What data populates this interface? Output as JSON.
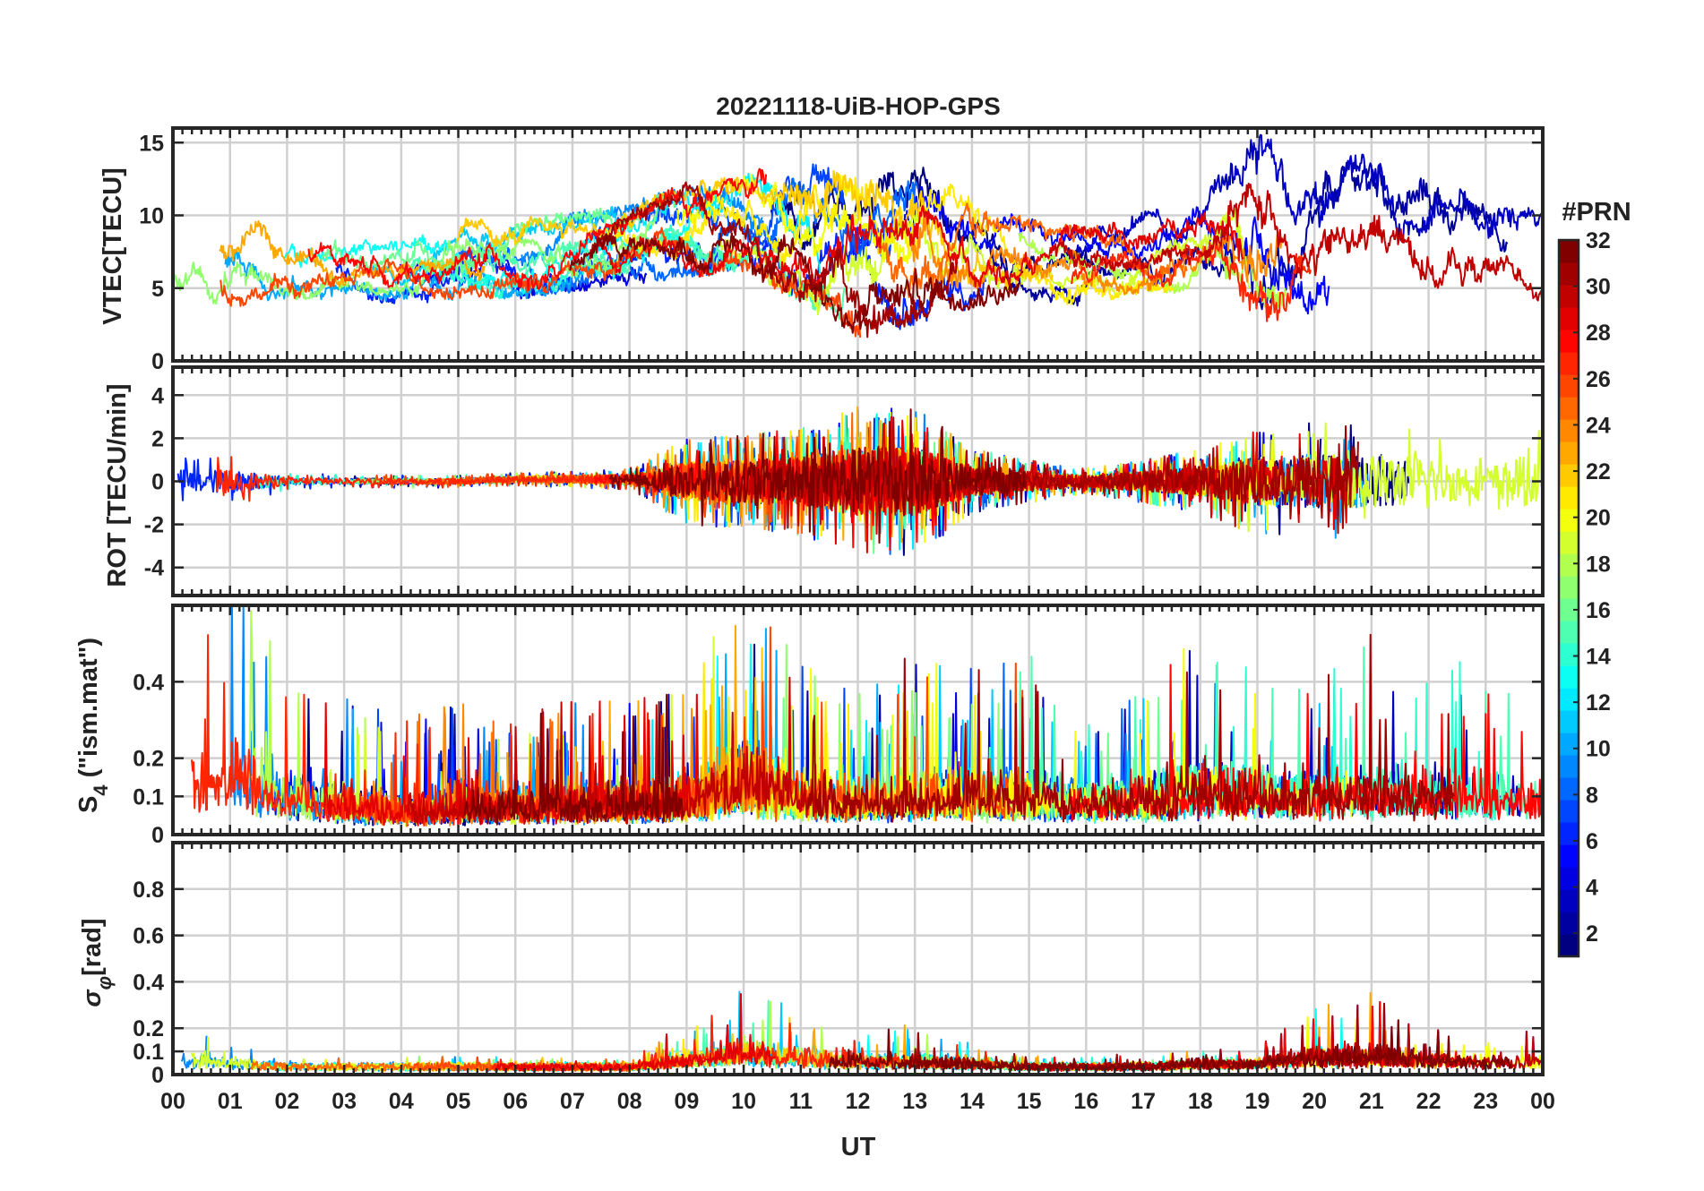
{
  "chart_data": [
    {
      "type": "line",
      "title": "20221118-UiB-HOP-GPS",
      "xlabel": "",
      "ylabel": "VTEC[TECU]",
      "xlim": [
        0,
        24
      ],
      "ylim": [
        0,
        16
      ],
      "yticks": [
        0,
        5,
        10,
        15
      ],
      "grid": true,
      "series_note": "32 PRN series (1–32), colored by PRN",
      "envelope": {
        "x": [
          0,
          1,
          2,
          3,
          4,
          5,
          6,
          7,
          8,
          9,
          10,
          11,
          12,
          13,
          14,
          15,
          16,
          17,
          18,
          19,
          20,
          21,
          22,
          23,
          24
        ],
        "center": [
          6,
          7,
          7,
          6.5,
          6,
          7,
          7,
          7.5,
          8,
          9,
          9.5,
          9,
          7,
          8,
          7.5,
          7,
          6.5,
          7.5,
          8,
          9,
          9,
          8.5,
          8,
          7,
          7
        ],
        "spread": [
          3,
          3,
          2.5,
          2,
          2,
          2.5,
          2.5,
          2.5,
          2.5,
          3,
          3,
          4.5,
          5,
          5,
          3.5,
          2.5,
          2.5,
          2.5,
          3,
          6,
          5,
          5,
          4.5,
          3.5,
          3
        ]
      }
    },
    {
      "type": "line",
      "title": "",
      "xlabel": "",
      "ylabel": "ROT [TECU/min]",
      "xlim": [
        0,
        24
      ],
      "ylim": [
        -5.3,
        5.3
      ],
      "yticks": [
        -4,
        -2,
        0,
        2,
        4
      ],
      "grid": true,
      "envelope": {
        "x": [
          0,
          1,
          2,
          3,
          4,
          5,
          6,
          7,
          8,
          9,
          10,
          11,
          12,
          13,
          14,
          15,
          16,
          17,
          18,
          19,
          20,
          21,
          22,
          23,
          24
        ],
        "center": [
          0,
          0,
          0,
          0,
          0,
          0,
          0.1,
          0.1,
          0.1,
          0,
          0,
          0,
          0,
          0,
          0,
          0,
          0,
          0,
          0,
          0,
          0,
          0,
          0,
          0,
          0
        ],
        "spread": [
          1.2,
          1.2,
          0.4,
          0.3,
          0.3,
          0.3,
          0.3,
          0.4,
          0.5,
          2,
          2.2,
          2.5,
          3.5,
          3.5,
          1.5,
          1,
          0.6,
          1,
          1.5,
          2.5,
          2.8,
          2.8,
          2.5,
          1.5,
          3
        ]
      }
    },
    {
      "type": "line",
      "title": "",
      "xlabel": "",
      "ylabel": "S4 (\"ism.mat\")",
      "ylabel_main": "S",
      "ylabel_sub": "4",
      "ylabel_rest": " (\"ism.mat\")",
      "xlim": [
        0,
        24
      ],
      "ylim": [
        0,
        0.6
      ],
      "yticks": [
        0,
        0.1,
        0.2,
        0.4
      ],
      "ytick_labels": [
        "0",
        "0.1",
        "0.2",
        "0.4"
      ],
      "grid": true,
      "envelope": {
        "x": [
          0,
          1,
          2,
          3,
          4,
          5,
          6,
          7,
          8,
          9,
          10,
          11,
          12,
          13,
          14,
          15,
          16,
          17,
          18,
          19,
          20,
          21,
          22,
          23,
          24
        ],
        "center": [
          0.08,
          0.1,
          0.06,
          0.05,
          0.04,
          0.04,
          0.05,
          0.05,
          0.05,
          0.06,
          0.08,
          0.06,
          0.06,
          0.06,
          0.06,
          0.06,
          0.06,
          0.06,
          0.07,
          0.07,
          0.07,
          0.07,
          0.07,
          0.06,
          0.06
        ],
        "spread": [
          0.2,
          0.35,
          0.25,
          0.2,
          0.15,
          0.2,
          0.15,
          0.2,
          0.2,
          0.2,
          0.4,
          0.25,
          0.2,
          0.25,
          0.25,
          0.25,
          0.15,
          0.2,
          0.3,
          0.25,
          0.2,
          0.3,
          0.25,
          0.25,
          0.2
        ]
      }
    },
    {
      "type": "line",
      "title": "",
      "xlabel": "UT",
      "ylabel": "σφ[rad]",
      "ylabel_main": "σ",
      "ylabel_sub": "φ",
      "ylabel_rest": "[rad]",
      "xlim": [
        0,
        24
      ],
      "ylim": [
        0,
        1
      ],
      "yticks": [
        0,
        0.1,
        0.2,
        0.4,
        0.6,
        0.8
      ],
      "ytick_labels": [
        "0",
        "0.1",
        "0.2",
        "0.4",
        "0.6",
        "0.8"
      ],
      "xticks": [
        0,
        1,
        2,
        3,
        4,
        5,
        6,
        7,
        8,
        9,
        10,
        11,
        12,
        13,
        14,
        15,
        16,
        17,
        18,
        19,
        20,
        21,
        22,
        23,
        24
      ],
      "xtick_labels": [
        "00",
        "01",
        "02",
        "03",
        "04",
        "05",
        "06",
        "07",
        "08",
        "09",
        "10",
        "11",
        "12",
        "13",
        "14",
        "15",
        "16",
        "17",
        "18",
        "19",
        "20",
        "21",
        "22",
        "23",
        "00"
      ],
      "grid": true,
      "envelope": {
        "x": [
          0,
          1,
          2,
          3,
          4,
          5,
          6,
          7,
          8,
          9,
          10,
          11,
          12,
          13,
          14,
          15,
          16,
          17,
          18,
          19,
          20,
          21,
          22,
          23,
          24
        ],
        "center": [
          0.05,
          0.04,
          0.03,
          0.03,
          0.03,
          0.03,
          0.03,
          0.03,
          0.03,
          0.05,
          0.06,
          0.05,
          0.04,
          0.04,
          0.04,
          0.03,
          0.03,
          0.03,
          0.04,
          0.04,
          0.05,
          0.05,
          0.05,
          0.04,
          0.04
        ],
        "spread": [
          0.12,
          0.06,
          0.02,
          0.02,
          0.02,
          0.03,
          0.02,
          0.02,
          0.02,
          0.1,
          0.2,
          0.15,
          0.1,
          0.1,
          0.05,
          0.03,
          0.03,
          0.03,
          0.04,
          0.04,
          0.15,
          0.2,
          0.1,
          0.08,
          0.1
        ]
      }
    }
  ],
  "colorbar": {
    "label": "#PRN",
    "min": 1,
    "max": 32,
    "ticks": [
      2,
      4,
      6,
      8,
      10,
      12,
      14,
      16,
      18,
      20,
      22,
      24,
      26,
      28,
      30,
      32
    ],
    "colormap": "jet",
    "colors": [
      "#00007f",
      "#0000ff",
      "#007fff",
      "#00ffff",
      "#7fff7f",
      "#ffff00",
      "#ff7f00",
      "#ff0000",
      "#7f0000"
    ]
  }
}
